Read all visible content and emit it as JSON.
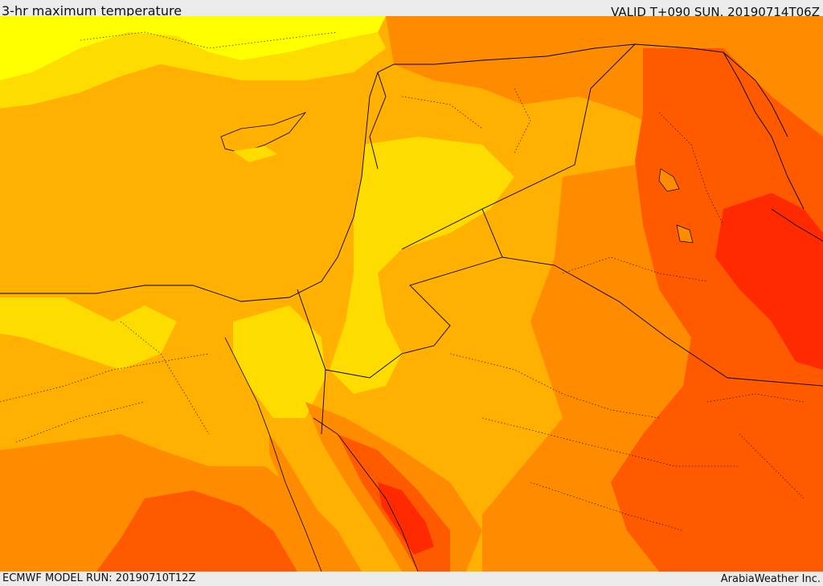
{
  "header": {
    "title": "3-hr maximum temperature",
    "valid": "VALID T+090 SUN. 20190714T06Z"
  },
  "footer": {
    "model_run": "ECMWF MODEL RUN: 20190710T12Z",
    "credit": "ArabiaWeather Inc."
  },
  "colors": {
    "band_yellow": "#ffff00",
    "band_gold": "#ffdc00",
    "band_amber": "#ffb000",
    "band_orange": "#ff8c00",
    "band_deep_orange": "#ff5a00",
    "band_red": "#ff2a00",
    "borders": "#000000"
  },
  "map": {
    "field": "temperature",
    "features": [
      "country-borders",
      "province-borders",
      "coastlines"
    ]
  }
}
